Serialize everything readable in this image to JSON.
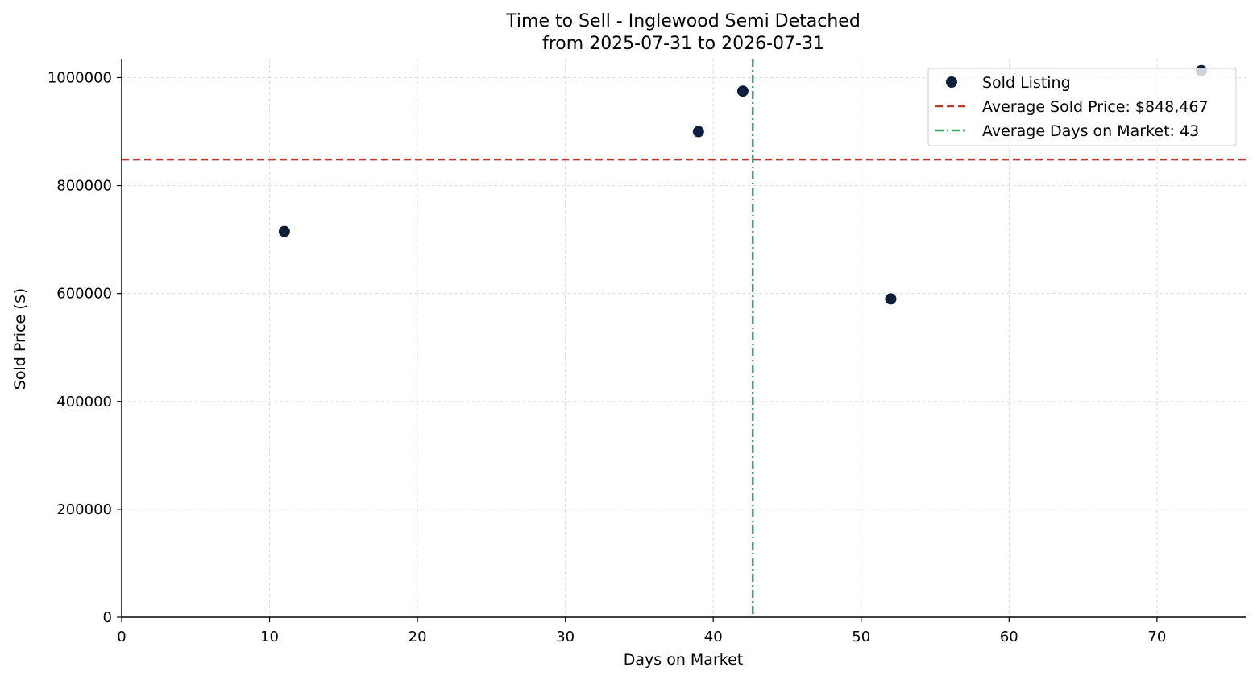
{
  "chart_data": {
    "type": "scatter",
    "title": "Time to Sell - Inglewood Semi Detached",
    "subtitle": "from 2025-07-31 to 2026-07-31",
    "xlabel": "Days on Market",
    "ylabel": "Sold Price ($)",
    "xlim": [
      0,
      76
    ],
    "ylim": [
      0,
      1035000
    ],
    "x_ticks": [
      0,
      10,
      20,
      30,
      40,
      50,
      60,
      70
    ],
    "x_tick_labels": [
      "0",
      "10",
      "20",
      "30",
      "40",
      "50",
      "60",
      "70"
    ],
    "y_ticks": [
      0,
      200000,
      400000,
      600000,
      800000,
      1000000
    ],
    "y_tick_labels": [
      "0",
      "200000",
      "400000",
      "600000",
      "800000",
      "1000000"
    ],
    "grid": true,
    "legend_position": "top-right",
    "series": [
      {
        "name": "Sold Listing",
        "color": "#0d1f3c",
        "points": [
          {
            "x": 11,
            "y": 715000
          },
          {
            "x": 39,
            "y": 900000
          },
          {
            "x": 42,
            "y": 975000
          },
          {
            "x": 52,
            "y": 590000
          },
          {
            "x": 73,
            "y": 1013000
          }
        ]
      }
    ],
    "reference_lines": [
      {
        "orientation": "horizontal",
        "value": 848467,
        "label": "Average Sold Price: $848,467",
        "color": "#c0392b",
        "style": "dashed"
      },
      {
        "orientation": "vertical",
        "value": 42.67,
        "label": "Average Days on Market: 43",
        "color": "#27ae60",
        "style": "dashdot"
      }
    ],
    "legend": [
      {
        "label": "Sold Listing",
        "marker": "dot",
        "color": "#0d1f3c"
      },
      {
        "label": "Average Sold Price: $848,467",
        "marker": "dashed-line",
        "color": "#c0392b"
      },
      {
        "label": "Average Days on Market: 43",
        "marker": "dashdot-line",
        "color": "#27ae60"
      }
    ]
  }
}
